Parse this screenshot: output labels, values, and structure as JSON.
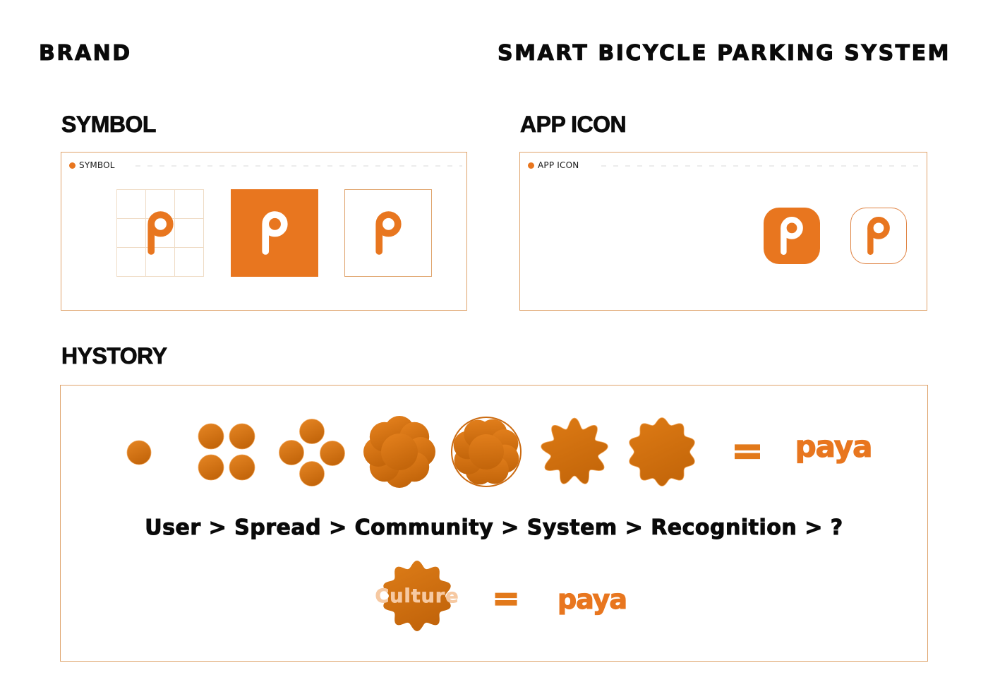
{
  "header": {
    "brand_label": "BRAND",
    "project_title": "SMART BICYCLE PARKING SYSTEM"
  },
  "colors": {
    "primary_orange": "#E8761F",
    "panel_border": "#DFA36B",
    "dot_gradient_start": "#E68624",
    "dot_gradient_end": "#C4660B",
    "culture_text": "#F6C9A2"
  },
  "symbol_section": {
    "heading": "SYMBOL",
    "panel_tag": "SYMBOL"
  },
  "app_icon_section": {
    "heading": "APP ICON",
    "panel_tag": "APP ICON"
  },
  "history_section": {
    "heading": "HYSTORY",
    "equals": "=",
    "wordmark": "paya",
    "flow_text": "User > Spread > Community > System > Recognition > ?",
    "culture": {
      "label": "Culture",
      "equals": "=",
      "wordmark": "paya"
    }
  }
}
